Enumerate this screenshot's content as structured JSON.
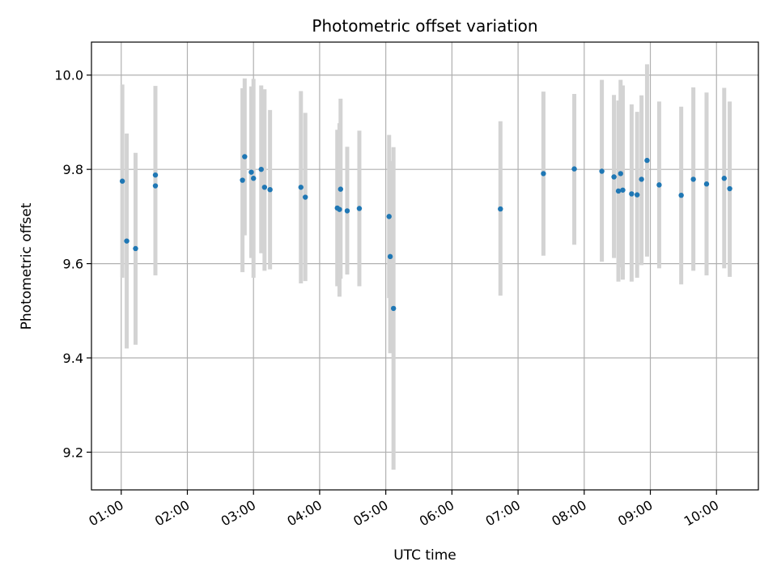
{
  "chart_data": {
    "type": "scatter",
    "title": "Photometric offset variation",
    "xlabel": "UTC time",
    "ylabel": "Photometric offset",
    "xlim": [
      "00:33",
      "10:38"
    ],
    "ylim": [
      9.12,
      10.07
    ],
    "grid": true,
    "x_ticks": [
      "01:00",
      "02:00",
      "03:00",
      "04:00",
      "05:00",
      "06:00",
      "07:00",
      "08:00",
      "09:00",
      "10:00"
    ],
    "y_ticks": [
      9.2,
      9.4,
      9.6,
      9.8,
      10.0
    ],
    "colors": {
      "points": "#1f77b4",
      "error_bars": "#d3d3d3",
      "grid": "#b0b0b0"
    },
    "points": [
      {
        "time": "01:01",
        "value": 9.775,
        "low": 9.57,
        "high": 9.98
      },
      {
        "time": "01:05",
        "value": 9.648,
        "low": 9.42,
        "high": 9.876
      },
      {
        "time": "01:13",
        "value": 9.632,
        "low": 9.428,
        "high": 9.835
      },
      {
        "time": "01:31",
        "value": 9.765,
        "low": 9.575,
        "high": 9.955
      },
      {
        "time": "01:31",
        "value": 9.788,
        "low": 9.6,
        "high": 9.977
      },
      {
        "time": "02:50",
        "value": 9.777,
        "low": 9.582,
        "high": 9.972
      },
      {
        "time": "02:52",
        "value": 9.827,
        "low": 9.66,
        "high": 9.993
      },
      {
        "time": "02:58",
        "value": 9.794,
        "low": 9.612,
        "high": 9.976
      },
      {
        "time": "03:00",
        "value": 9.781,
        "low": 9.57,
        "high": 9.992
      },
      {
        "time": "03:07",
        "value": 9.8,
        "low": 9.622,
        "high": 9.978
      },
      {
        "time": "03:10",
        "value": 9.762,
        "low": 9.585,
        "high": 9.97
      },
      {
        "time": "03:15",
        "value": 9.757,
        "low": 9.588,
        "high": 9.926
      },
      {
        "time": "03:43",
        "value": 9.762,
        "low": 9.558,
        "high": 9.966
      },
      {
        "time": "03:47",
        "value": 9.741,
        "low": 9.563,
        "high": 9.92
      },
      {
        "time": "04:16",
        "value": 9.718,
        "low": 9.552,
        "high": 9.884
      },
      {
        "time": "04:18",
        "value": 9.715,
        "low": 9.53,
        "high": 9.898
      },
      {
        "time": "04:19",
        "value": 9.758,
        "low": 9.568,
        "high": 9.95
      },
      {
        "time": "04:25",
        "value": 9.712,
        "low": 9.577,
        "high": 9.848
      },
      {
        "time": "04:36",
        "value": 9.717,
        "low": 9.552,
        "high": 9.882
      },
      {
        "time": "05:03",
        "value": 9.7,
        "low": 9.527,
        "high": 9.873
      },
      {
        "time": "05:04",
        "value": 9.615,
        "low": 9.41,
        "high": 9.818
      },
      {
        "time": "05:07",
        "value": 9.505,
        "low": 9.163,
        "high": 9.847
      },
      {
        "time": "06:44",
        "value": 9.716,
        "low": 9.532,
        "high": 9.902
      },
      {
        "time": "07:23",
        "value": 9.791,
        "low": 9.617,
        "high": 9.965
      },
      {
        "time": "07:51",
        "value": 9.801,
        "low": 9.64,
        "high": 9.96
      },
      {
        "time": "08:16",
        "value": 9.796,
        "low": 9.604,
        "high": 9.99
      },
      {
        "time": "08:27",
        "value": 9.784,
        "low": 9.612,
        "high": 9.958
      },
      {
        "time": "08:31",
        "value": 9.754,
        "low": 9.562,
        "high": 9.946
      },
      {
        "time": "08:33",
        "value": 9.791,
        "low": 9.592,
        "high": 9.99
      },
      {
        "time": "08:35",
        "value": 9.756,
        "low": 9.566,
        "high": 9.978
      },
      {
        "time": "08:43",
        "value": 9.748,
        "low": 9.562,
        "high": 9.938
      },
      {
        "time": "08:48",
        "value": 9.746,
        "low": 9.57,
        "high": 9.922
      },
      {
        "time": "08:52",
        "value": 9.779,
        "low": 9.597,
        "high": 9.957
      },
      {
        "time": "08:57",
        "value": 9.819,
        "low": 9.615,
        "high": 10.023
      },
      {
        "time": "09:08",
        "value": 9.767,
        "low": 9.59,
        "high": 9.944
      },
      {
        "time": "09:28",
        "value": 9.745,
        "low": 9.556,
        "high": 9.933
      },
      {
        "time": "09:39",
        "value": 9.779,
        "low": 9.585,
        "high": 9.974
      },
      {
        "time": "09:51",
        "value": 9.769,
        "low": 9.575,
        "high": 9.963
      },
      {
        "time": "10:07",
        "value": 9.781,
        "low": 9.59,
        "high": 9.973
      },
      {
        "time": "10:12",
        "value": 9.759,
        "low": 9.572,
        "high": 9.944
      }
    ]
  }
}
